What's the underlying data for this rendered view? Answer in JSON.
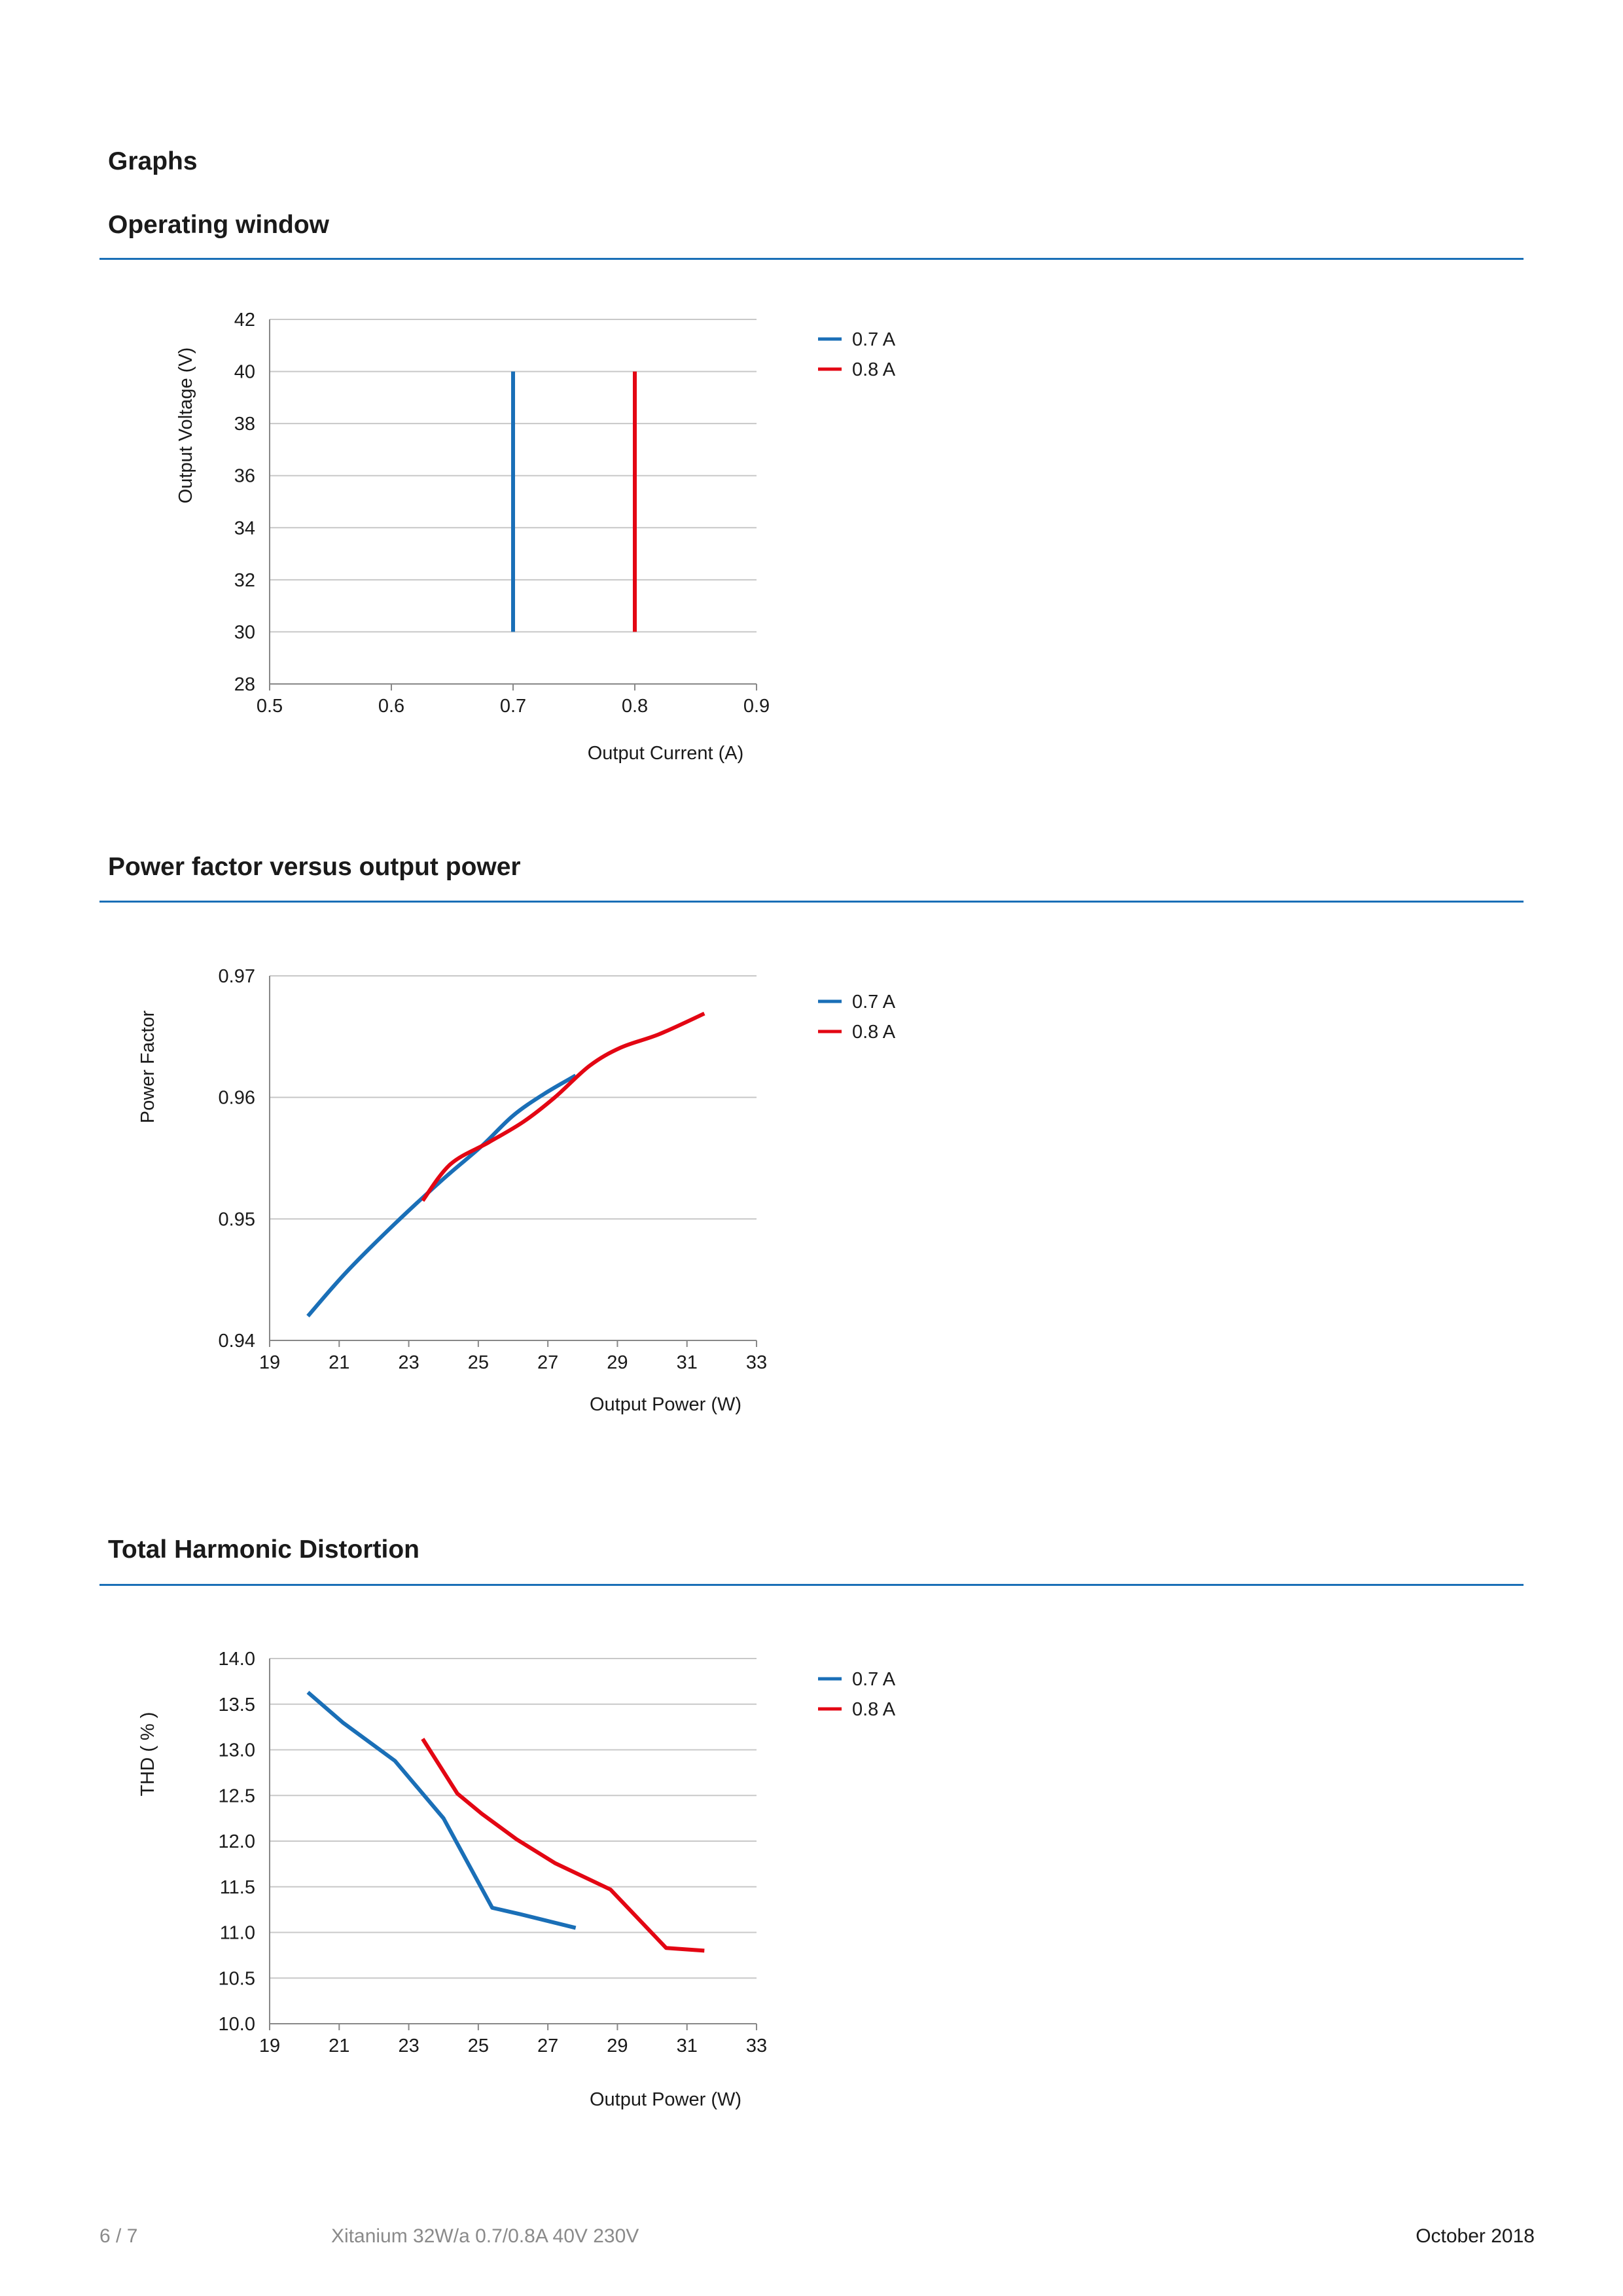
{
  "page": {
    "section_title": "Graphs",
    "footer": {
      "page": "6 / 7",
      "product": "Xitanium 32W/a 0.7/0.8A 40V 230V",
      "date": "October 2018"
    }
  },
  "colors": {
    "series1": "#1a6fb7",
    "series2": "#e30613",
    "grid": "#c8c8c8",
    "rule": "#1a6fb7"
  },
  "chart_data": [
    {
      "heading": "Operating window",
      "type": "line",
      "xlabel": "Output Current (A)",
      "ylabel": "Output Voltage (V)",
      "xlim": [
        0.5,
        0.9
      ],
      "ylim": [
        28,
        42
      ],
      "xticks": [
        0.5,
        0.6,
        0.7,
        0.8,
        0.9
      ],
      "xtick_labels": [
        "0.5",
        "0.6",
        "0.7",
        "0.8",
        "0.9"
      ],
      "yticks": [
        28,
        30,
        32,
        34,
        36,
        38,
        40,
        42
      ],
      "ytick_labels": [
        "28",
        "30",
        "32",
        "34",
        "36",
        "38",
        "40",
        "42"
      ],
      "grid": true,
      "legend_position": "right",
      "series": [
        {
          "name": "0.7 A",
          "color": "#1a6fb7",
          "points": [
            [
              0.7,
              30
            ],
            [
              0.7,
              40
            ]
          ]
        },
        {
          "name": "0.8 A",
          "color": "#e30613",
          "points": [
            [
              0.8,
              30
            ],
            [
              0.8,
              40
            ]
          ]
        }
      ]
    },
    {
      "heading": "Power factor versus output power",
      "type": "line",
      "xlabel": "Output Power (W)",
      "ylabel": "Power Factor",
      "xlim": [
        19,
        33
      ],
      "ylim": [
        0.94,
        0.97
      ],
      "xticks": [
        19,
        21,
        23,
        25,
        27,
        29,
        31,
        33
      ],
      "xtick_labels": [
        "19",
        "21",
        "23",
        "25",
        "27",
        "29",
        "31",
        "33"
      ],
      "yticks": [
        0.94,
        0.95,
        0.96,
        0.97
      ],
      "ytick_labels": [
        "0.94",
        "0.95",
        "0.96",
        "0.97"
      ],
      "grid": true,
      "smooth": true,
      "legend_position": "right",
      "series": [
        {
          "name": "0.7 A",
          "color": "#1a6fb7",
          "points": [
            [
              20.1,
              0.942
            ],
            [
              21.2,
              0.9456
            ],
            [
              22.6,
              0.9496
            ],
            [
              24.0,
              0.9533
            ],
            [
              25.1,
              0.956
            ],
            [
              26.0,
              0.9585
            ],
            [
              26.9,
              0.9603
            ],
            [
              27.8,
              0.9618
            ]
          ]
        },
        {
          "name": "0.8 A",
          "color": "#e30613",
          "points": [
            [
              23.4,
              0.9515
            ],
            [
              24.2,
              0.9545
            ],
            [
              25.3,
              0.9563
            ],
            [
              26.3,
              0.958
            ],
            [
              27.2,
              0.96
            ],
            [
              28.2,
              0.9626
            ],
            [
              29.1,
              0.9641
            ],
            [
              30.2,
              0.9652
            ],
            [
              31.5,
              0.9669
            ]
          ]
        }
      ]
    },
    {
      "heading": "Total Harmonic Distortion",
      "type": "line",
      "xlabel": "Output Power (W)",
      "ylabel": "THD ( % )",
      "xlim": [
        19,
        33
      ],
      "ylim": [
        10.0,
        14.0
      ],
      "xticks": [
        19,
        21,
        23,
        25,
        27,
        29,
        31,
        33
      ],
      "xtick_labels": [
        "19",
        "21",
        "23",
        "25",
        "27",
        "29",
        "31",
        "33"
      ],
      "yticks": [
        10.0,
        10.5,
        11.0,
        11.5,
        12.0,
        12.5,
        13.0,
        13.5,
        14.0
      ],
      "ytick_labels": [
        "10.0",
        "10.5",
        "11.0",
        "11.5",
        "12.0",
        "12.5",
        "13.0",
        "13.5",
        "14.0"
      ],
      "grid": true,
      "smooth": false,
      "legend_position": "right",
      "series": [
        {
          "name": "0.7 A",
          "color": "#1a6fb7",
          "points": [
            [
              20.1,
              13.63
            ],
            [
              21.1,
              13.3
            ],
            [
              22.6,
              12.88
            ],
            [
              24.0,
              12.25
            ],
            [
              25.4,
              11.27
            ],
            [
              26.2,
              11.2
            ],
            [
              27.8,
              11.05
            ]
          ]
        },
        {
          "name": "0.8 A",
          "color": "#e30613",
          "points": [
            [
              23.4,
              13.12
            ],
            [
              24.4,
              12.52
            ],
            [
              25.1,
              12.3
            ],
            [
              26.1,
              12.02
            ],
            [
              27.2,
              11.76
            ],
            [
              28.8,
              11.47
            ],
            [
              30.4,
              10.83
            ],
            [
              31.5,
              10.8
            ]
          ]
        }
      ]
    }
  ]
}
